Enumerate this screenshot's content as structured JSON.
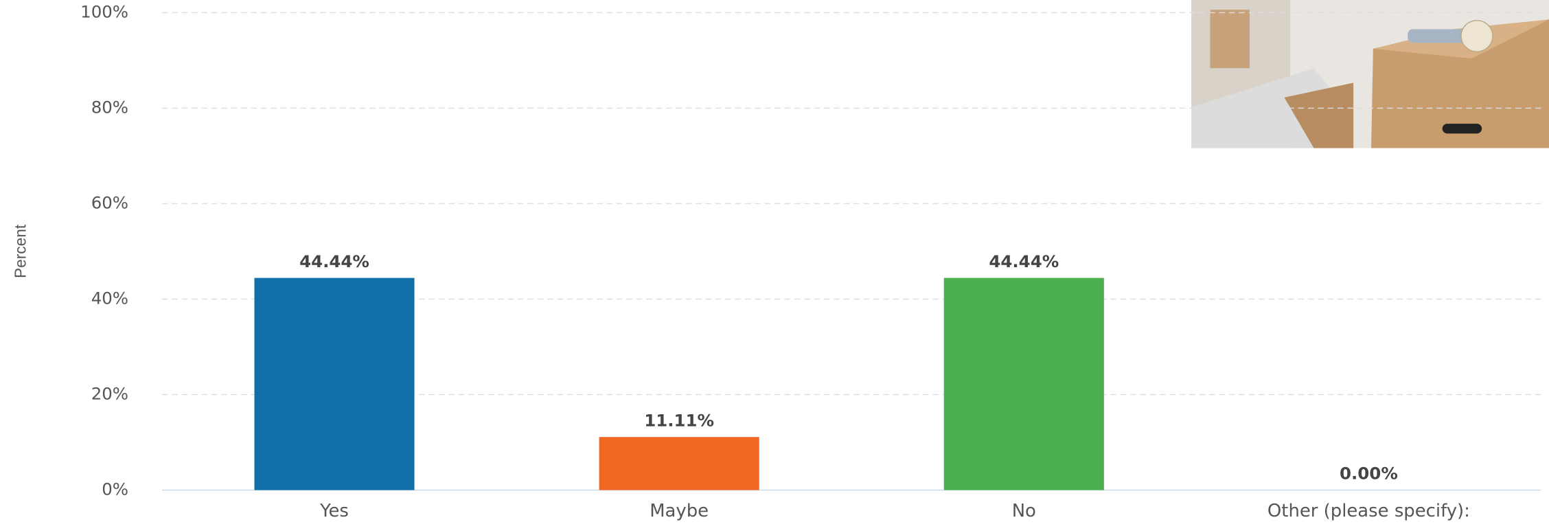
{
  "chart_data": {
    "type": "bar",
    "y_label": "Percent",
    "categories": [
      "Yes",
      "Maybe",
      "No",
      "Other (please specify):"
    ],
    "values": [
      44.44,
      11.11,
      44.44,
      0
    ],
    "value_labels": [
      "44.44%",
      "11.11%",
      "44.44%",
      "0.00%"
    ],
    "colors": [
      "#1170aa",
      "#f26722",
      "#4caf50",
      "#9e9e9e"
    ],
    "ylim": [
      0,
      100
    ],
    "yticks": [
      {
        "value": 0,
        "label": "0%"
      },
      {
        "value": 20,
        "label": "20%"
      },
      {
        "value": 40,
        "label": "40%"
      },
      {
        "value": 60,
        "label": "60%"
      },
      {
        "value": 80,
        "label": "80%"
      },
      {
        "value": 100,
        "label": "100%"
      }
    ],
    "grid": true
  }
}
